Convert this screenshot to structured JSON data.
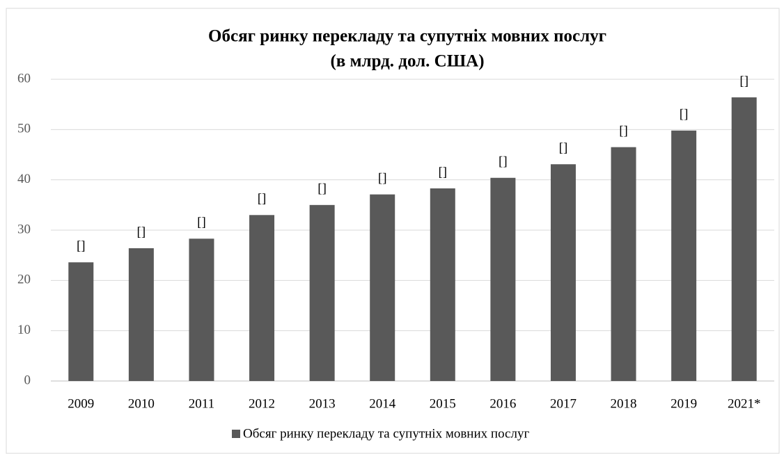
{
  "chart_data": {
    "type": "bar",
    "title": "Обсяг ринку  перекладу та супутніх мовних послуг",
    "subtitle": "(в млрд. дол. США)",
    "categories": [
      "2009",
      "2010",
      "2011",
      "2012",
      "2013",
      "2014",
      "2015",
      "2016",
      "2017",
      "2018",
      "2019",
      "2021*"
    ],
    "series": [
      {
        "name": "Обсяг ринку перекладу та супутніх мовних послуг",
        "color": "#595959",
        "values": [
          23.6,
          26.4,
          28.3,
          33.0,
          35.0,
          37.1,
          38.3,
          40.4,
          43.1,
          46.5,
          49.8,
          56.4
        ],
        "value_labels": [
          "[]",
          "[]",
          "[]",
          "[]",
          "[]",
          "[]",
          "[]",
          "[]",
          "[]",
          "[]",
          "[]",
          "[]"
        ]
      }
    ],
    "ylim": [
      0,
      60
    ],
    "yticks": [
      0,
      10,
      20,
      30,
      40,
      50,
      60
    ],
    "grid": true,
    "legend": "bottom"
  }
}
